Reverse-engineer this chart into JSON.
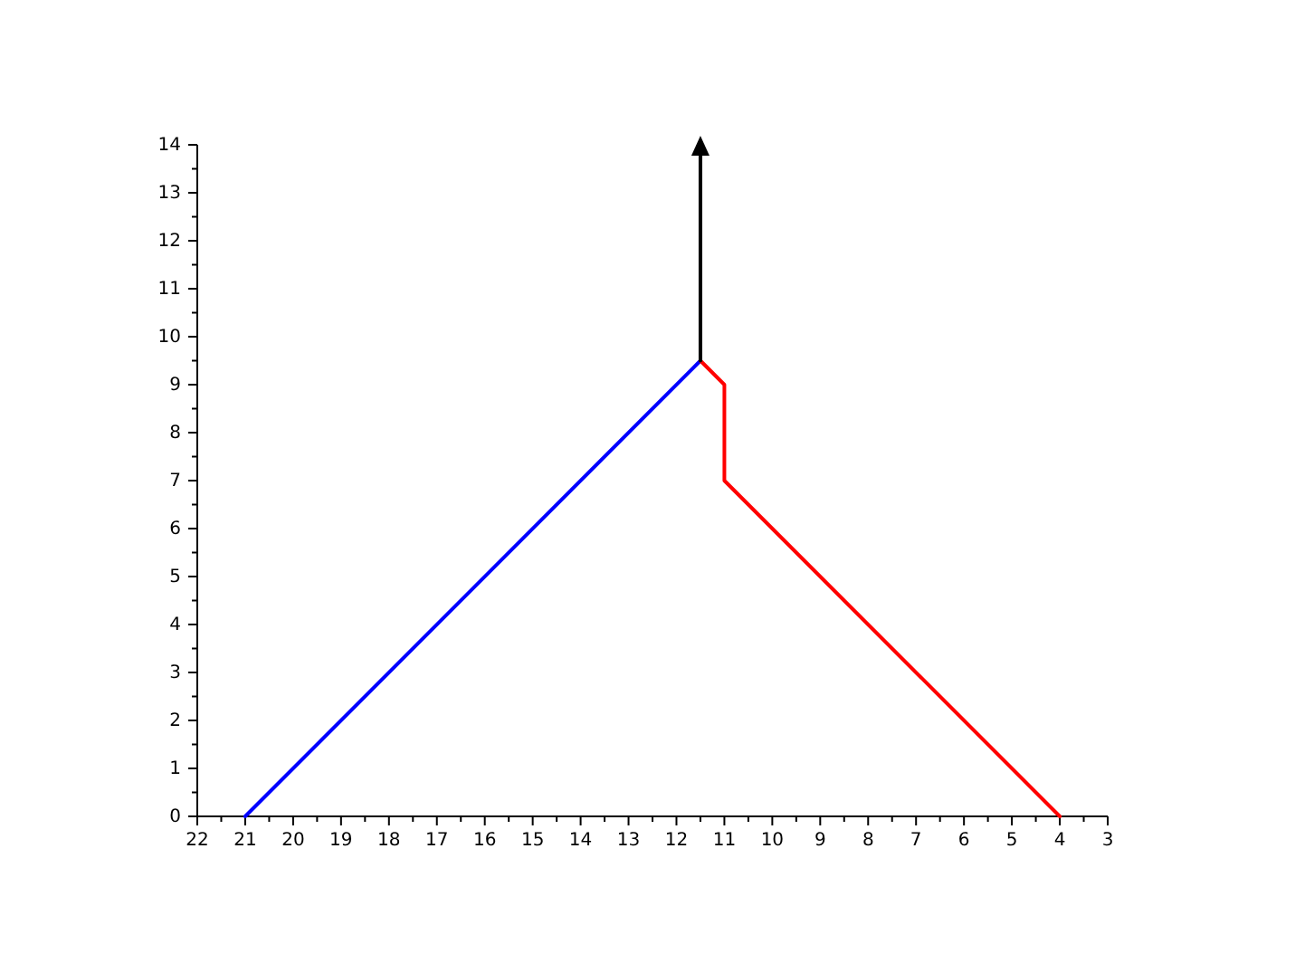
{
  "chart_data": {
    "type": "line",
    "xlim": [
      22,
      3
    ],
    "ylim": [
      0,
      14
    ],
    "xticks": [
      22,
      {
        "value": 21.5,
        "label": null
      },
      21,
      {
        "value": 20.5,
        "label": null
      },
      20,
      {
        "value": 19.5,
        "label": null
      },
      19,
      {
        "value": 18.5,
        "label": null
      },
      18,
      {
        "value": 17.5,
        "label": null
      },
      17,
      {
        "value": 16.5,
        "label": null
      },
      16,
      {
        "value": 15.5,
        "label": null
      },
      15,
      {
        "value": 14.5,
        "label": null
      },
      14,
      {
        "value": 13.5,
        "label": null
      },
      13,
      {
        "value": 12.5,
        "label": null
      },
      12,
      {
        "value": 11.5,
        "label": null
      },
      11,
      {
        "value": 10.5,
        "label": null
      },
      10,
      {
        "value": 9.5,
        "label": null
      },
      9,
      {
        "value": 8.5,
        "label": null
      },
      8,
      {
        "value": 7.5,
        "label": null
      },
      7,
      {
        "value": 6.5,
        "label": null
      },
      6,
      {
        "value": 5.5,
        "label": null
      },
      5,
      {
        "value": 4.5,
        "label": null
      },
      4,
      {
        "value": 3.5,
        "label": null
      },
      3
    ],
    "yticks": [
      0,
      {
        "value": 0.5,
        "label": null
      },
      1,
      {
        "value": 1.5,
        "label": null
      },
      2,
      {
        "value": 2.5,
        "label": null
      },
      3,
      {
        "value": 3.5,
        "label": null
      },
      4,
      {
        "value": 4.5,
        "label": null
      },
      5,
      {
        "value": 5.5,
        "label": null
      },
      6,
      {
        "value": 6.5,
        "label": null
      },
      7,
      {
        "value": 7.5,
        "label": null
      },
      8,
      {
        "value": 8.5,
        "label": null
      },
      9,
      {
        "value": 9.5,
        "label": null
      },
      10,
      {
        "value": 10.5,
        "label": null
      },
      11,
      {
        "value": 11.5,
        "label": null
      },
      12,
      {
        "value": 12.5,
        "label": null
      },
      13,
      {
        "value": 13.5,
        "label": null
      },
      14
    ],
    "grid": false,
    "line_style": "solid",
    "series": [
      {
        "color": "#0000ff",
        "x": [
          21,
          11.5
        ],
        "values": [
          0,
          9.5
        ]
      },
      {
        "color": "#ff0000",
        "x": [
          11.5,
          11,
          11,
          4
        ],
        "values": [
          9.5,
          9,
          7,
          0
        ]
      },
      {
        "color": "#000000",
        "x": [
          11.5,
          11.5
        ],
        "values": [
          9.5,
          14
        ],
        "marker": "triangle"
      }
    ]
  }
}
